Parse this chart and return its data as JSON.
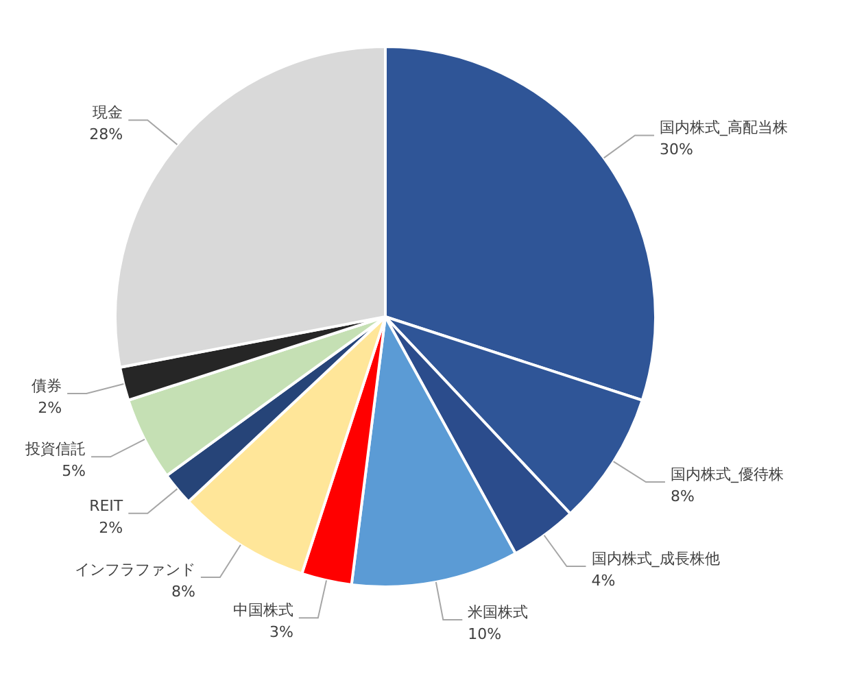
{
  "chart_data": {
    "type": "pie",
    "categories": [
      "国内株式_高配当株",
      "国内株式_優待株",
      "国内株式_成長株他",
      "米国株式",
      "中国株式",
      "インフラファンド",
      "REIT",
      "投資信託",
      "債券",
      "現金"
    ],
    "values": [
      30,
      8,
      4,
      10,
      3,
      8,
      2,
      5,
      2,
      28
    ],
    "value_labels": [
      "30%",
      "8%",
      "4%",
      "10%",
      "3%",
      "8%",
      "2%",
      "5%",
      "2%",
      "28%"
    ],
    "colors": [
      "#2f5597",
      "#2f5597",
      "#2b4c8c",
      "#5b9bd5",
      "#ff0000",
      "#ffe699",
      "#264478",
      "#c5e0b4",
      "#262626",
      "#d9d9d9"
    ],
    "legend": false
  }
}
